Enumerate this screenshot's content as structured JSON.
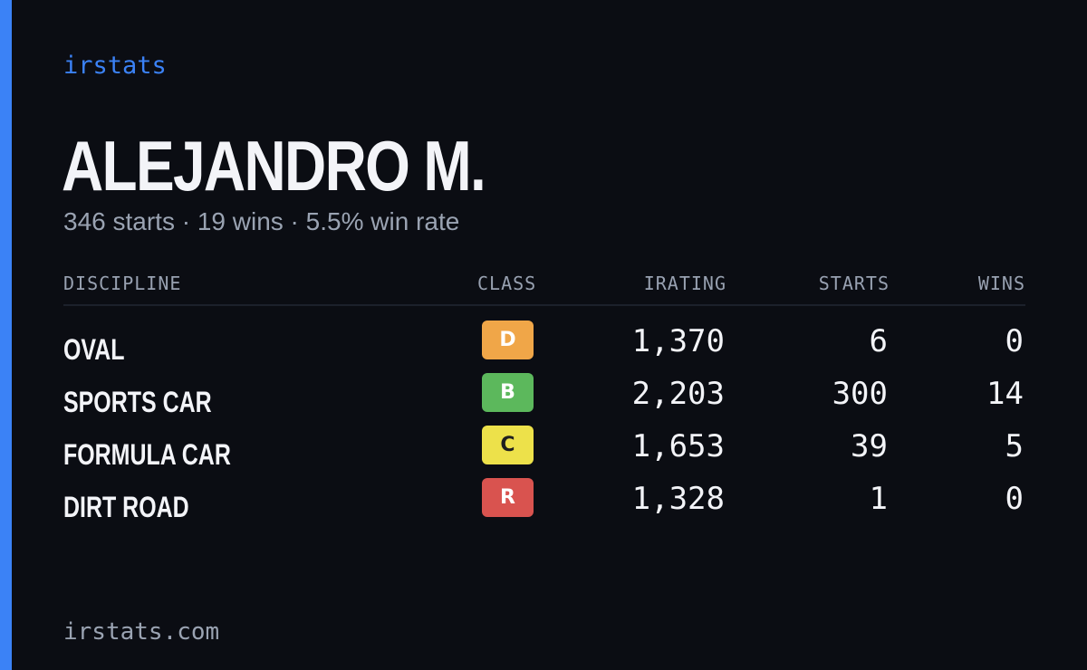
{
  "brand": "irstats",
  "driver": {
    "name": "ALEJANDRO M.",
    "summary": "346 starts · 19 wins · 5.5% win rate"
  },
  "table": {
    "headers": {
      "discipline": "DISCIPLINE",
      "class": "CLASS",
      "irating": "IRATING",
      "starts": "STARTS",
      "wins": "WINS"
    },
    "rows": [
      {
        "discipline": "OVAL",
        "class": "D",
        "class_color": "#f0a648",
        "class_text_color": "#ffffff",
        "irating": "1,370",
        "starts": "6",
        "wins": "0"
      },
      {
        "discipline": "SPORTS CAR",
        "class": "B",
        "class_color": "#5cb85c",
        "class_text_color": "#ffffff",
        "irating": "2,203",
        "starts": "300",
        "wins": "14"
      },
      {
        "discipline": "FORMULA CAR",
        "class": "C",
        "class_color": "#ede14a",
        "class_text_color": "#1f1f1f",
        "irating": "1,653",
        "starts": "39",
        "wins": "5"
      },
      {
        "discipline": "DIRT ROAD",
        "class": "R",
        "class_color": "#d9534f",
        "class_text_color": "#ffffff",
        "irating": "1,328",
        "starts": "1",
        "wins": "0"
      }
    ]
  },
  "footer": "irstats.com",
  "colors": {
    "background": "#0b0d13",
    "accent": "#3b82f6",
    "text_primary": "#f3f4f8",
    "text_secondary": "#9aa3b2"
  }
}
